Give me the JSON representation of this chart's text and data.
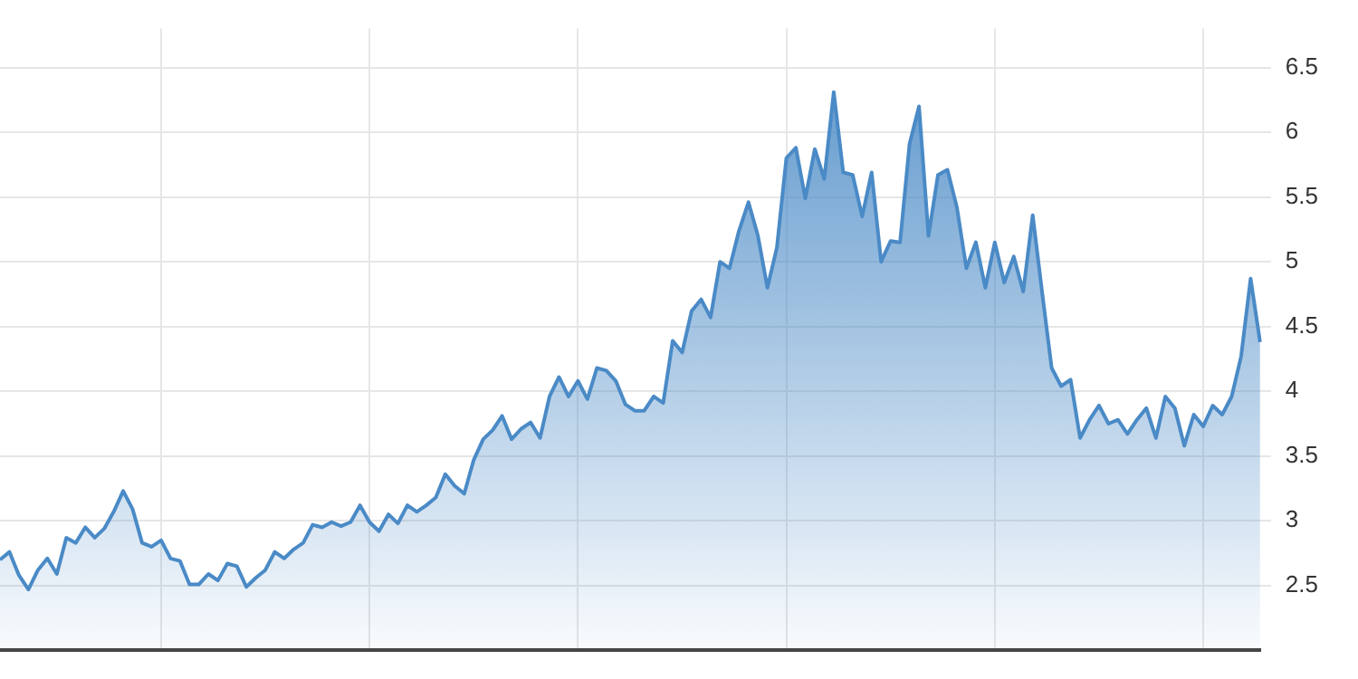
{
  "chart_data": {
    "type": "area",
    "categories": [
      null,
      null,
      null,
      null,
      null,
      null,
      null,
      null,
      null,
      null,
      null,
      null,
      null,
      null,
      null,
      null,
      null,
      null,
      null,
      null,
      null,
      null,
      null,
      null,
      null,
      null,
      null,
      null,
      null,
      null,
      null,
      null,
      null,
      null,
      null,
      null,
      null,
      null,
      null,
      null,
      null,
      null,
      null,
      null,
      null,
      null,
      null,
      null,
      null,
      null,
      null,
      null,
      null,
      null,
      null,
      null,
      null,
      null,
      null,
      null,
      null,
      null,
      null,
      null,
      null,
      null,
      null,
      null,
      null,
      null,
      null,
      null,
      null,
      null,
      null,
      null,
      null,
      null,
      null,
      null,
      null,
      null,
      null,
      null,
      null,
      null,
      null,
      null,
      null,
      null,
      null,
      null,
      null,
      null,
      null,
      null,
      null,
      null,
      null,
      null,
      null,
      null,
      null,
      null,
      null,
      null,
      null,
      null,
      null,
      null,
      null,
      null,
      null,
      null,
      null,
      null,
      null,
      null,
      null,
      null,
      null,
      null,
      null,
      null,
      null,
      null,
      null,
      null,
      null,
      null,
      null,
      null,
      null,
      null
    ],
    "series": [
      {
        "color": "#4a8ac6",
        "values": [
          2.7,
          2.76,
          2.58,
          2.47,
          2.62,
          2.71,
          2.59,
          2.87,
          2.83,
          2.95,
          2.87,
          2.94,
          3.07,
          3.23,
          3.09,
          2.83,
          2.8,
          2.85,
          2.71,
          2.69,
          2.51,
          2.51,
          2.59,
          2.54,
          2.67,
          2.65,
          2.49,
          2.56,
          2.62,
          2.76,
          2.71,
          2.78,
          2.83,
          2.97,
          2.95,
          2.99,
          2.96,
          2.99,
          3.12,
          2.99,
          2.92,
          3.05,
          2.98,
          3.12,
          3.07,
          3.12,
          3.18,
          3.36,
          3.27,
          3.21,
          3.47,
          3.63,
          3.7,
          3.81,
          3.63,
          3.71,
          3.76,
          3.64,
          3.96,
          4.11,
          3.96,
          4.08,
          3.94,
          4.18,
          4.16,
          4.08,
          3.9,
          3.85,
          3.85,
          3.96,
          3.91,
          4.39,
          4.3,
          4.62,
          4.71,
          4.57,
          5.0,
          4.95,
          5.24,
          5.46,
          5.2,
          4.8,
          5.11,
          5.8,
          5.88,
          5.49,
          5.87,
          5.64,
          6.31,
          5.69,
          5.67,
          5.35,
          5.69,
          5.0,
          5.16,
          5.15,
          5.91,
          6.2,
          5.2,
          5.67,
          5.71,
          5.42,
          4.95,
          5.15,
          4.8,
          5.15,
          4.84,
          5.04,
          4.77,
          5.36,
          4.76,
          4.18,
          4.04,
          4.09,
          3.64,
          3.78,
          3.89,
          3.75,
          3.78,
          3.67,
          3.78,
          3.87,
          3.64,
          3.96,
          3.87,
          3.58,
          3.82,
          3.73,
          3.89,
          3.82,
          3.96,
          4.27,
          4.87,
          4.38
        ]
      }
    ],
    "ylim": [
      2.0,
      6.8
    ],
    "yticks": [
      2.5,
      3,
      3.5,
      4,
      4.5,
      5,
      5.5,
      6,
      6.5
    ],
    "grid": true,
    "legend": false,
    "tick_labels": "y",
    "marker": "none",
    "line_style": "solid"
  }
}
